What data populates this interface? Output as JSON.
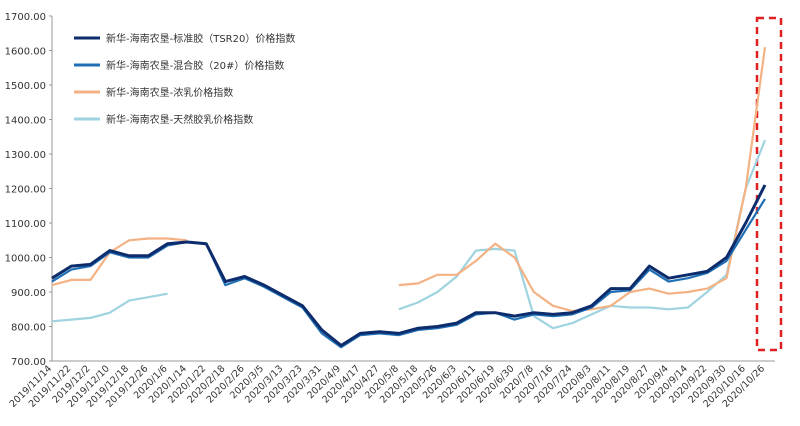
{
  "chart_data": {
    "type": "line",
    "categories": [
      "2019/11/14",
      "2019/11/22",
      "2019/12/2",
      "2019/12/10",
      "2019/12/18",
      "2019/12/26",
      "2020/1/6",
      "2020/1/14",
      "2020/1/22",
      "2020/2/18",
      "2020/2/26",
      "2020/3/5",
      "2020/3/13",
      "2020/3/23",
      "2020/3/31",
      "2020/4/9",
      "2020/4/17",
      "2020/4/27",
      "2020/5/8",
      "2020/5/18",
      "2020/5/26",
      "2020/6/3",
      "2020/6/11",
      "2020/6/19",
      "2020/6/30",
      "2020/7/8",
      "2020/7/16",
      "2020/7/24",
      "2020/8/3",
      "2020/8/11",
      "2020/8/19",
      "2020/8/27",
      "2020/9/4",
      "2020/9/14",
      "2020/9/22",
      "2020/9/30",
      "2020/10/16",
      "2020/10/26"
    ],
    "series": [
      {
        "name": "新华-海南农垦-标准胶（TSR20）价格指数",
        "color": "#0d2c6c",
        "values": [
          940,
          975,
          980,
          1020,
          1005,
          1005,
          1040,
          1045,
          1040,
          930,
          945,
          920,
          890,
          860,
          790,
          745,
          780,
          785,
          780,
          795,
          800,
          810,
          840,
          840,
          830,
          840,
          835,
          840,
          860,
          910,
          910,
          975,
          940,
          950,
          960,
          1000,
          1100,
          1210
        ]
      },
      {
        "name": "新华-海南农垦-混合胶（20#）价格指数",
        "color": "#1f6fb5",
        "values": [
          930,
          965,
          975,
          1015,
          1000,
          1000,
          1035,
          1045,
          1040,
          920,
          940,
          915,
          885,
          855,
          780,
          740,
          775,
          780,
          775,
          790,
          795,
          805,
          835,
          840,
          820,
          835,
          830,
          835,
          855,
          900,
          905,
          965,
          930,
          940,
          955,
          990,
          1080,
          1170
        ]
      },
      {
        "name": "新华-海南农垦-浓乳价格指数",
        "color": "#f4b183",
        "values": [
          920,
          935,
          935,
          1015,
          1050,
          1055,
          1055,
          1050,
          null,
          null,
          null,
          null,
          null,
          null,
          null,
          null,
          null,
          null,
          920,
          925,
          950,
          950,
          990,
          1040,
          1000,
          900,
          860,
          845,
          850,
          860,
          900,
          910,
          895,
          900,
          910,
          940,
          1200,
          1610
        ]
      },
      {
        "name": "新华-海南农垦-天然胶乳价格指数",
        "color": "#9fd3e0",
        "values": [
          815,
          820,
          825,
          840,
          875,
          885,
          895,
          null,
          null,
          null,
          null,
          null,
          null,
          null,
          null,
          null,
          null,
          null,
          850,
          870,
          900,
          945,
          1020,
          1025,
          1020,
          830,
          795,
          810,
          835,
          860,
          855,
          855,
          850,
          855,
          900,
          950,
          1200,
          1340
        ]
      }
    ],
    "ylim": [
      700,
      1700
    ],
    "yticks": [
      {
        "value": 700,
        "label": "700.00"
      },
      {
        "value": 800,
        "label": "800.00"
      },
      {
        "value": 900,
        "label": "900.00"
      },
      {
        "value": 1000,
        "label": "1000.00"
      },
      {
        "value": 1100,
        "label": "1100.00"
      },
      {
        "value": 1200,
        "label": "1200.00"
      },
      {
        "value": 1300,
        "label": "1300.00"
      },
      {
        "value": 1400,
        "label": "1400.00"
      },
      {
        "value": 1500,
        "label": "1500.00"
      },
      {
        "value": 1600,
        "label": "1600.00"
      },
      {
        "value": 1700,
        "label": "1700.00"
      }
    ],
    "grid": false
  }
}
